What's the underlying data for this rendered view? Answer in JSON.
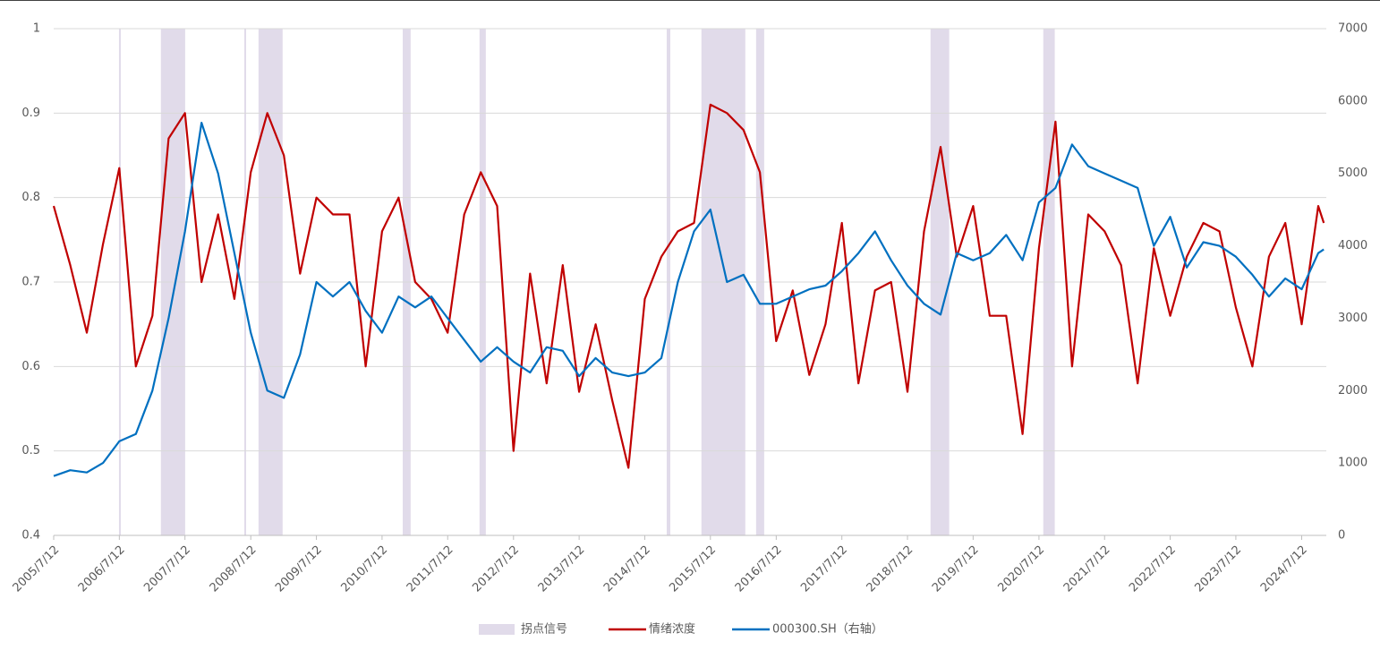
{
  "chart_data": {
    "type": "line",
    "x": [
      "2005/7/12",
      "2005/10/12",
      "2006/1/12",
      "2006/4/12",
      "2006/7/12",
      "2006/10/12",
      "2007/1/12",
      "2007/4/12",
      "2007/7/12",
      "2007/10/12",
      "2008/1/12",
      "2008/4/12",
      "2008/7/12",
      "2008/10/12",
      "2009/1/12",
      "2009/4/12",
      "2009/7/12",
      "2009/10/12",
      "2010/1/12",
      "2010/4/12",
      "2010/7/12",
      "2010/10/12",
      "2011/1/12",
      "2011/4/12",
      "2011/7/12",
      "2011/10/12",
      "2012/1/12",
      "2012/4/12",
      "2012/7/12",
      "2012/10/12",
      "2013/1/12",
      "2013/4/12",
      "2013/7/12",
      "2013/10/12",
      "2014/1/12",
      "2014/4/12",
      "2014/7/12",
      "2014/10/12",
      "2015/1/12",
      "2015/4/12",
      "2015/7/12",
      "2015/10/12",
      "2016/1/12",
      "2016/4/12",
      "2016/7/12",
      "2016/10/12",
      "2017/1/12",
      "2017/4/12",
      "2017/7/12",
      "2017/10/12",
      "2018/1/12",
      "2018/4/12",
      "2018/7/12",
      "2018/10/12",
      "2019/1/12",
      "2019/4/12",
      "2019/7/12",
      "2019/10/12",
      "2020/1/12",
      "2020/4/12",
      "2020/7/12",
      "2020/10/12",
      "2021/1/12",
      "2021/4/12",
      "2021/7/12",
      "2021/10/12",
      "2022/1/12",
      "2022/4/12",
      "2022/7/12",
      "2022/10/12",
      "2023/1/12",
      "2023/4/12",
      "2023/7/12",
      "2023/10/12",
      "2024/1/12",
      "2024/4/12",
      "2024/7/12",
      "2024/10/12",
      "2024/11/12"
    ],
    "series": [
      {
        "name": "情绪浓度",
        "color": "#c00000",
        "axis": "y",
        "values": [
          0.79,
          0.72,
          0.64,
          0.745,
          0.835,
          0.6,
          0.66,
          0.87,
          0.9,
          0.7,
          0.78,
          0.68,
          0.83,
          0.9,
          0.85,
          0.71,
          0.8,
          0.78,
          0.78,
          0.6,
          0.76,
          0.8,
          0.7,
          0.68,
          0.64,
          0.78,
          0.83,
          0.79,
          0.5,
          0.71,
          0.58,
          0.72,
          0.57,
          0.65,
          0.56,
          0.48,
          0.68,
          0.73,
          0.76,
          0.77,
          0.91,
          0.9,
          0.88,
          0.83,
          0.63,
          0.69,
          0.59,
          0.65,
          0.77,
          0.58,
          0.69,
          0.7,
          0.57,
          0.76,
          0.86,
          0.73,
          0.79,
          0.66,
          0.66,
          0.52,
          0.74,
          0.89,
          0.6,
          0.78,
          0.76,
          0.72,
          0.58,
          0.74,
          0.66,
          0.73,
          0.77,
          0.76,
          0.67,
          0.6,
          0.73,
          0.77,
          0.65,
          0.79,
          0.77
        ]
      },
      {
        "name": "000300.SH（右轴）",
        "color": "#0070c0",
        "axis": "y2",
        "values": [
          820,
          900,
          870,
          1000,
          1300,
          1400,
          2000,
          3000,
          4200,
          5700,
          5000,
          3900,
          2800,
          2000,
          1900,
          2500,
          3500,
          3300,
          3500,
          3100,
          2800,
          3300,
          3150,
          3300,
          3000,
          2700,
          2400,
          2600,
          2400,
          2250,
          2600,
          2550,
          2200,
          2450,
          2250,
          2200,
          2250,
          2450,
          3500,
          4200,
          4500,
          3500,
          3600,
          3200,
          3200,
          3300,
          3400,
          3450,
          3650,
          3900,
          4200,
          3800,
          3450,
          3200,
          3050,
          3900,
          3800,
          3900,
          4150,
          3800,
          4600,
          4800,
          5400,
          5100,
          5000,
          4900,
          4800,
          4000,
          4400,
          3700,
          4050,
          4000,
          3850,
          3600,
          3300,
          3550,
          3400,
          3900,
          3950
        ]
      }
    ],
    "signal": {
      "name": "拐点信号",
      "color": "#e1dbea",
      "ranges": [
        [
          "2006/7/10",
          "2006/7/20"
        ],
        [
          "2007/2/28",
          "2007/7/13"
        ],
        [
          "2008/6/6",
          "2008/6/16"
        ],
        [
          "2008/8/24",
          "2009/1/5"
        ],
        [
          "2010/11/4",
          "2010/12/18"
        ],
        [
          "2012/1/5",
          "2012/2/9"
        ],
        [
          "2014/11/11",
          "2014/12/1"
        ],
        [
          "2015/5/23",
          "2016/1/22"
        ],
        [
          "2016/3/22",
          "2016/5/6"
        ],
        [
          "2018/11/17",
          "2019/3/1"
        ],
        [
          "2020/8/5",
          "2020/10/8"
        ]
      ]
    },
    "xlim": [
      "2005/7/12",
      "2024/11/26"
    ],
    "xticks": [
      "2005/7/12",
      "2006/7/12",
      "2007/7/12",
      "2008/7/12",
      "2009/7/12",
      "2010/7/12",
      "2011/7/12",
      "2012/7/12",
      "2013/7/12",
      "2014/7/12",
      "2015/7/12",
      "2016/7/12",
      "2017/7/12",
      "2018/7/12",
      "2019/7/12",
      "2020/7/12",
      "2021/7/12",
      "2022/7/12",
      "2023/7/12",
      "2024/7/12"
    ],
    "ylim": [
      0.4,
      1
    ],
    "yticks": [
      0.4,
      0.5,
      0.6,
      0.7,
      0.8,
      0.9,
      1
    ],
    "y2lim": [
      0,
      7000
    ],
    "y2ticks": [
      0,
      1000,
      2000,
      3000,
      4000,
      5000,
      6000,
      7000
    ],
    "grid": true
  }
}
